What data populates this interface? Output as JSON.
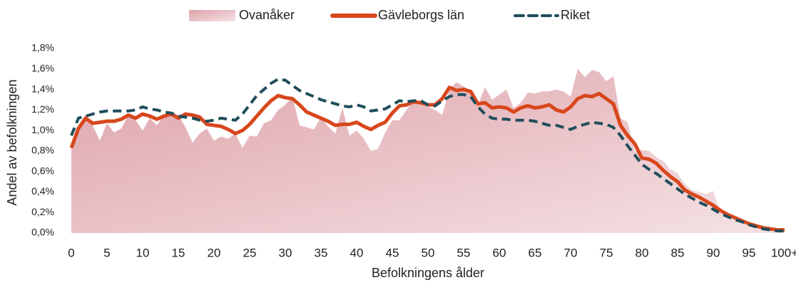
{
  "chart_data": {
    "type": "line",
    "xlabel": "Befolkningens ålder",
    "ylabel": "Andel av befolkningen",
    "categories": [
      "0",
      null,
      null,
      null,
      null,
      "5",
      null,
      null,
      null,
      null,
      "10",
      null,
      null,
      null,
      null,
      "15",
      null,
      null,
      null,
      null,
      "20",
      null,
      null,
      null,
      null,
      "25",
      null,
      null,
      null,
      null,
      "30",
      null,
      null,
      null,
      null,
      "35",
      null,
      null,
      null,
      null,
      "40",
      null,
      null,
      null,
      null,
      "45",
      null,
      null,
      null,
      null,
      "50",
      null,
      null,
      null,
      null,
      "55",
      null,
      null,
      null,
      null,
      "60",
      null,
      null,
      null,
      null,
      "65",
      null,
      null,
      null,
      null,
      "70",
      null,
      null,
      null,
      null,
      "75",
      null,
      null,
      null,
      null,
      "80",
      null,
      null,
      null,
      null,
      "85",
      null,
      null,
      null,
      null,
      "90",
      null,
      null,
      null,
      null,
      "95",
      null,
      null,
      null,
      null,
      "100+"
    ],
    "ylim": [
      0,
      1.8
    ],
    "yticks": [
      {
        "value": 0,
        "label": "0,0%"
      },
      {
        "value": 0.2,
        "label": "0,2%"
      },
      {
        "value": 0.4,
        "label": "0,4%"
      },
      {
        "value": 0.6,
        "label": "0,6%"
      },
      {
        "value": 0.8,
        "label": "0,8%"
      },
      {
        "value": 1.0,
        "label": "1,0%"
      },
      {
        "value": 1.2,
        "label": "1,2%"
      },
      {
        "value": 1.4,
        "label": "1,4%"
      },
      {
        "value": 1.6,
        "label": "1,6%"
      },
      {
        "value": 1.8,
        "label": "1,8%"
      }
    ],
    "legend": "top",
    "series": [
      {
        "name": "Ovanåker",
        "style": "area",
        "color": "#dc9ea6",
        "values": [
          0.85,
          1.0,
          1.16,
          1.05,
          0.9,
          1.07,
          0.98,
          1.02,
          1.15,
          1.1,
          1.0,
          1.12,
          1.05,
          1.15,
          1.18,
          1.15,
          1.03,
          0.88,
          0.97,
          1.02,
          0.9,
          0.94,
          0.92,
          0.97,
          0.83,
          0.95,
          0.94,
          1.07,
          1.1,
          1.2,
          1.25,
          1.33,
          1.05,
          1.03,
          1.01,
          1.13,
          1.04,
          0.97,
          1.22,
          0.95,
          1.0,
          0.92,
          0.8,
          0.82,
          0.98,
          1.1,
          1.1,
          1.2,
          1.3,
          1.25,
          1.23,
          1.2,
          1.15,
          1.4,
          1.47,
          1.43,
          1.38,
          1.25,
          1.42,
          1.3,
          1.35,
          1.4,
          1.22,
          1.27,
          1.37,
          1.36,
          1.38,
          1.38,
          1.4,
          1.38,
          1.33,
          1.6,
          1.52,
          1.59,
          1.57,
          1.48,
          1.53,
          1.12,
          1.08,
          0.8,
          0.81,
          0.8,
          0.74,
          0.7,
          0.62,
          0.58,
          0.48,
          0.42,
          0.4,
          0.38,
          0.41,
          0.2,
          0.17,
          0.15,
          0.12,
          0.09,
          0.06,
          0.04,
          0.03,
          0.03,
          0.03
        ]
      },
      {
        "name": "Gävleborgs län",
        "style": "solid",
        "color": "#d8471c",
        "values": [
          0.83,
          1.02,
          1.12,
          1.07,
          1.08,
          1.09,
          1.09,
          1.11,
          1.15,
          1.12,
          1.16,
          1.14,
          1.11,
          1.14,
          1.16,
          1.12,
          1.16,
          1.15,
          1.13,
          1.06,
          1.05,
          1.04,
          1.01,
          0.97,
          1.0,
          1.06,
          1.14,
          1.22,
          1.29,
          1.34,
          1.32,
          1.31,
          1.25,
          1.18,
          1.15,
          1.12,
          1.09,
          1.05,
          1.06,
          1.06,
          1.08,
          1.04,
          1.01,
          1.05,
          1.08,
          1.17,
          1.24,
          1.25,
          1.28,
          1.27,
          1.25,
          1.25,
          1.31,
          1.42,
          1.39,
          1.4,
          1.38,
          1.26,
          1.27,
          1.22,
          1.23,
          1.22,
          1.18,
          1.22,
          1.24,
          1.22,
          1.23,
          1.25,
          1.2,
          1.18,
          1.23,
          1.31,
          1.34,
          1.33,
          1.36,
          1.31,
          1.26,
          1.05,
          0.95,
          0.87,
          0.73,
          0.72,
          0.68,
          0.61,
          0.55,
          0.5,
          0.42,
          0.38,
          0.35,
          0.31,
          0.27,
          0.22,
          0.18,
          0.15,
          0.12,
          0.09,
          0.07,
          0.05,
          0.04,
          0.03,
          0.03
        ]
      },
      {
        "name": "Riket",
        "style": "dashed",
        "color": "#1f4e5a",
        "values": [
          0.95,
          1.12,
          1.14,
          1.16,
          1.18,
          1.19,
          1.19,
          1.19,
          1.19,
          1.2,
          1.23,
          1.21,
          1.2,
          1.18,
          1.17,
          1.14,
          1.13,
          1.12,
          1.1,
          1.09,
          1.1,
          1.12,
          1.11,
          1.1,
          1.16,
          1.25,
          1.34,
          1.4,
          1.46,
          1.5,
          1.49,
          1.44,
          1.39,
          1.36,
          1.33,
          1.3,
          1.28,
          1.26,
          1.24,
          1.23,
          1.25,
          1.23,
          1.19,
          1.2,
          1.21,
          1.25,
          1.29,
          1.28,
          1.29,
          1.29,
          1.25,
          1.24,
          1.29,
          1.33,
          1.35,
          1.35,
          1.33,
          1.23,
          1.16,
          1.12,
          1.11,
          1.11,
          1.1,
          1.1,
          1.1,
          1.09,
          1.07,
          1.05,
          1.05,
          1.03,
          1.01,
          1.04,
          1.06,
          1.08,
          1.07,
          1.06,
          1.03,
          0.95,
          0.85,
          0.76,
          0.67,
          0.62,
          0.58,
          0.53,
          0.48,
          0.43,
          0.38,
          0.34,
          0.3,
          0.27,
          0.23,
          0.19,
          0.16,
          0.13,
          0.11,
          0.08,
          0.06,
          0.04,
          0.03,
          0.02,
          0.02
        ]
      }
    ]
  }
}
